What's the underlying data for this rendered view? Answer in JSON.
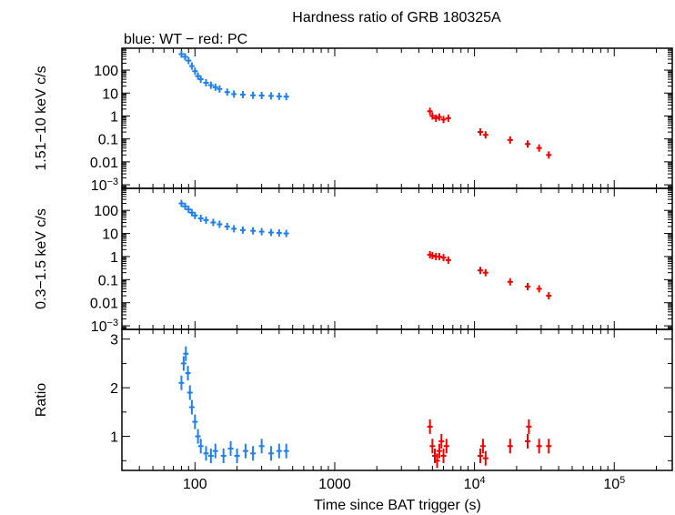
{
  "chart_data": {
    "type": "scatter",
    "title": "Hardness ratio of GRB 180325A",
    "subtitle": "blue: WT − red: PC",
    "xlabel": "Time since BAT trigger (s)",
    "xscale": "log",
    "xlim": [
      30,
      260000
    ],
    "x_ticks": [
      {
        "value": 100,
        "base": "100",
        "exp": ""
      },
      {
        "value": 1000,
        "base": "1000",
        "exp": ""
      },
      {
        "value": 10000,
        "base": "10",
        "exp": "4"
      },
      {
        "value": 100000,
        "base": "10",
        "exp": "5"
      }
    ],
    "colors": {
      "WT": "#1f7ff0",
      "PC": "#ee0000",
      "axes": "#000000"
    },
    "panels": [
      {
        "id": "hard",
        "ylabel": "1.51−10 keV c/s",
        "yscale": "log",
        "ylim": [
          0.0007,
          900
        ],
        "y_ticks": [
          {
            "value": 100,
            "base": "100",
            "exp": ""
          },
          {
            "value": 10,
            "base": "10",
            "exp": ""
          },
          {
            "value": 1,
            "base": "1",
            "exp": ""
          },
          {
            "value": 0.1,
            "base": "0.1",
            "exp": ""
          },
          {
            "value": 0.01,
            "base": "0.01",
            "exp": ""
          },
          {
            "value": 0.001,
            "base": "10",
            "exp": "−3"
          }
        ],
        "series": [
          {
            "name": "WT",
            "points": [
              [
                80,
                500
              ],
              [
                85,
                380
              ],
              [
                90,
                260
              ],
              [
                95,
                150
              ],
              [
                100,
                90
              ],
              [
                105,
                55
              ],
              [
                110,
                40
              ],
              [
                120,
                28
              ],
              [
                130,
                22
              ],
              [
                140,
                18
              ],
              [
                150,
                15
              ],
              [
                170,
                11
              ],
              [
                190,
                9
              ],
              [
                220,
                8.5
              ],
              [
                260,
                8
              ],
              [
                300,
                7.8
              ],
              [
                350,
                7.5
              ],
              [
                400,
                7.2
              ],
              [
                450,
                7
              ]
            ]
          },
          {
            "name": "PC",
            "points": [
              [
                4800,
                1.6
              ],
              [
                5000,
                1.0
              ],
              [
                5300,
                0.8
              ],
              [
                5600,
                0.9
              ],
              [
                6000,
                0.7
              ],
              [
                6500,
                0.8
              ],
              [
                11000,
                0.2
              ],
              [
                12000,
                0.15
              ],
              [
                18000,
                0.09
              ],
              [
                24000,
                0.06
              ],
              [
                29000,
                0.04
              ],
              [
                34000,
                0.02
              ]
            ]
          }
        ]
      },
      {
        "id": "soft",
        "ylabel": "0.3−1.5 keV c/s",
        "yscale": "log",
        "ylim": [
          0.0007,
          900
        ],
        "y_ticks": [
          {
            "value": 100,
            "base": "100",
            "exp": ""
          },
          {
            "value": 10,
            "base": "10",
            "exp": ""
          },
          {
            "value": 1,
            "base": "1",
            "exp": ""
          },
          {
            "value": 0.1,
            "base": "0.1",
            "exp": ""
          },
          {
            "value": 0.01,
            "base": "0.01",
            "exp": ""
          },
          {
            "value": 0.001,
            "base": "10",
            "exp": "−3"
          }
        ],
        "series": [
          {
            "name": "WT",
            "points": [
              [
                80,
                200
              ],
              [
                85,
                150
              ],
              [
                90,
                110
              ],
              [
                95,
                80
              ],
              [
                100,
                60
              ],
              [
                110,
                45
              ],
              [
                120,
                38
              ],
              [
                135,
                30
              ],
              [
                150,
                25
              ],
              [
                170,
                20
              ],
              [
                190,
                16
              ],
              [
                220,
                14
              ],
              [
                260,
                13
              ],
              [
                300,
                12
              ],
              [
                350,
                11
              ],
              [
                400,
                10.5
              ],
              [
                450,
                10
              ]
            ]
          },
          {
            "name": "PC",
            "points": [
              [
                4800,
                1.2
              ],
              [
                5000,
                1.1
              ],
              [
                5300,
                1.0
              ],
              [
                5600,
                1.0
              ],
              [
                6000,
                0.9
              ],
              [
                6500,
                0.7
              ],
              [
                11000,
                0.25
              ],
              [
                12000,
                0.2
              ],
              [
                18000,
                0.08
              ],
              [
                24000,
                0.05
              ],
              [
                29000,
                0.04
              ],
              [
                34000,
                0.02
              ]
            ]
          }
        ]
      },
      {
        "id": "ratio",
        "ylabel": "Ratio",
        "yscale": "linear",
        "ylim": [
          0.3,
          3.2
        ],
        "y_ticks": [
          {
            "value": 1,
            "base": "1",
            "exp": ""
          },
          {
            "value": 2,
            "base": "2",
            "exp": ""
          },
          {
            "value": 3,
            "base": "3",
            "exp": ""
          }
        ],
        "series": [
          {
            "name": "WT",
            "points": [
              [
                80,
                2.1
              ],
              [
                83,
                2.5
              ],
              [
                86,
                2.7
              ],
              [
                89,
                2.3
              ],
              [
                92,
                1.9
              ],
              [
                95,
                1.6
              ],
              [
                100,
                1.3
              ],
              [
                105,
                1.0
              ],
              [
                110,
                0.8
              ],
              [
                120,
                0.65
              ],
              [
                130,
                0.6
              ],
              [
                140,
                0.7
              ],
              [
                160,
                0.6
              ],
              [
                180,
                0.75
              ],
              [
                200,
                0.6
              ],
              [
                230,
                0.7
              ],
              [
                260,
                0.65
              ],
              [
                300,
                0.8
              ],
              [
                350,
                0.65
              ],
              [
                400,
                0.7
              ],
              [
                450,
                0.7
              ]
            ]
          },
          {
            "name": "PC",
            "points": [
              [
                4800,
                1.2
              ],
              [
                5000,
                0.8
              ],
              [
                5200,
                0.6
              ],
              [
                5400,
                0.5
              ],
              [
                5600,
                0.7
              ],
              [
                5800,
                0.9
              ],
              [
                6000,
                0.6
              ],
              [
                6300,
                0.8
              ],
              [
                11000,
                0.6
              ],
              [
                11500,
                0.8
              ],
              [
                12000,
                0.55
              ],
              [
                18000,
                0.8
              ],
              [
                24000,
                0.9
              ],
              [
                24500,
                1.2
              ],
              [
                29000,
                0.8
              ],
              [
                34000,
                0.8
              ]
            ]
          }
        ]
      }
    ]
  }
}
